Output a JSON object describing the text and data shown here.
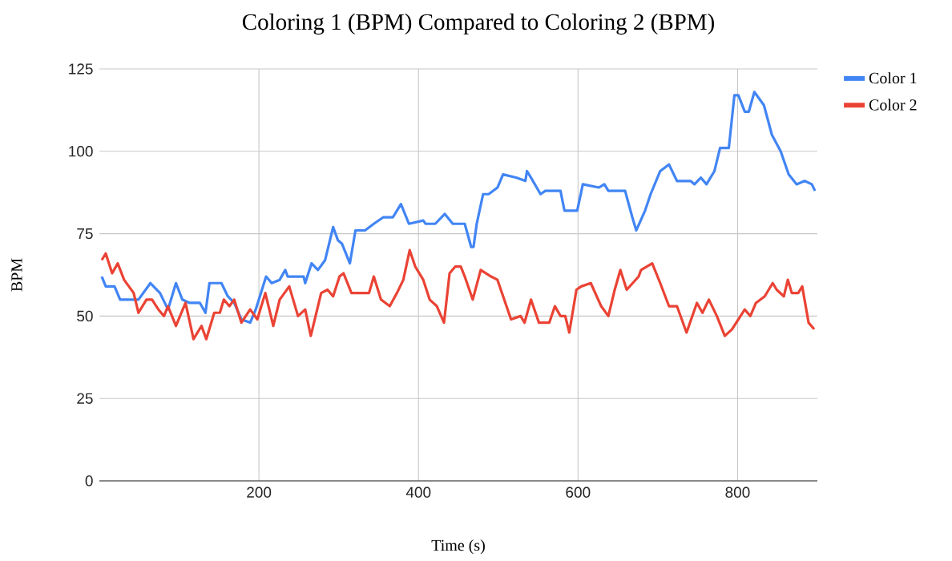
{
  "chart_data": {
    "type": "line",
    "title": "Coloring 1 (BPM) Compared to Coloring 2 (BPM)",
    "xlabel": "Time (s)",
    "ylabel": "BPM",
    "xlim": [
      0,
      900
    ],
    "ylim": [
      0,
      125
    ],
    "xticks": [
      200,
      400,
      600,
      800
    ],
    "yticks": [
      0,
      25,
      50,
      75,
      100,
      125
    ],
    "grid": true,
    "legend": "top right",
    "series": [
      {
        "name": "Color 1",
        "color": "#4285f4",
        "x": [
          3,
          8,
          19,
          26,
          49,
          64,
          76,
          86,
          96,
          104,
          113,
          126,
          133,
          138,
          153,
          161,
          169,
          178,
          189,
          196,
          209,
          216,
          226,
          233,
          236,
          256,
          258,
          266,
          274,
          283,
          293,
          299,
          304,
          314,
          321,
          333,
          344,
          356,
          368,
          378,
          388,
          406,
          409,
          421,
          433,
          443,
          458,
          466,
          469,
          473,
          481,
          488,
          499,
          506,
          523,
          534,
          536,
          541,
          553,
          559,
          578,
          583,
          599,
          606,
          626,
          633,
          638,
          659,
          668,
          673,
          684,
          691,
          703,
          714,
          724,
          741,
          746,
          754,
          761,
          771,
          778,
          789,
          796,
          801,
          809,
          814,
          821,
          833,
          843,
          854,
          864,
          874,
          884,
          893,
          897
        ],
        "values": [
          62,
          59,
          59,
          55,
          55,
          60,
          57,
          52,
          60,
          55,
          54,
          54,
          51,
          60,
          60,
          56,
          54,
          49,
          48,
          52,
          62,
          60,
          61,
          64,
          62,
          62,
          60,
          66,
          64,
          67,
          77,
          73,
          72,
          66,
          76,
          76,
          78,
          80,
          80,
          84,
          78,
          79,
          78,
          78,
          81,
          78,
          78,
          71,
          71,
          78,
          87,
          87,
          89,
          93,
          92,
          91,
          94,
          92,
          87,
          88,
          88,
          82,
          82,
          90,
          89,
          90,
          88,
          88,
          80,
          76,
          82,
          87,
          94,
          96,
          91,
          91,
          90,
          92,
          90,
          94,
          101,
          101,
          117,
          117,
          112,
          112,
          118,
          114,
          105,
          100,
          93,
          90,
          91,
          90,
          88
        ]
      },
      {
        "name": "Color 2",
        "color": "#ea4335",
        "x": [
          3,
          8,
          16,
          23,
          31,
          43,
          49,
          59,
          66,
          74,
          81,
          86,
          96,
          108,
          118,
          128,
          134,
          144,
          151,
          156,
          163,
          169,
          178,
          189,
          198,
          208,
          218,
          226,
          238,
          249,
          258,
          265,
          278,
          286,
          293,
          301,
          306,
          316,
          338,
          344,
          353,
          364,
          373,
          381,
          389,
          396,
          406,
          414,
          423,
          432,
          439,
          446,
          453,
          458,
          468,
          478,
          491,
          499,
          516,
          528,
          533,
          541,
          551,
          564,
          571,
          578,
          584,
          589,
          598,
          604,
          616,
          629,
          638,
          646,
          653,
          661,
          676,
          679,
          693,
          703,
          714,
          724,
          736,
          749,
          756,
          764,
          774,
          784,
          793,
          809,
          816,
          823,
          834,
          844,
          849,
          858,
          863,
          868,
          876,
          881,
          889,
          896
        ],
        "values": [
          67,
          69,
          63,
          66,
          61,
          57,
          51,
          55,
          55,
          52,
          50,
          53,
          47,
          54,
          43,
          47,
          43,
          51,
          51,
          55,
          53,
          55,
          48,
          52,
          49,
          57,
          47,
          55,
          59,
          50,
          52,
          44,
          57,
          58,
          56,
          62,
          63,
          57,
          57,
          62,
          55,
          53,
          57,
          61,
          70,
          65,
          61,
          55,
          53,
          48,
          63,
          65,
          65,
          62,
          55,
          64,
          62,
          61,
          49,
          50,
          48,
          55,
          48,
          48,
          53,
          50,
          50,
          45,
          58,
          59,
          60,
          53,
          50,
          58,
          64,
          58,
          62,
          64,
          66,
          60,
          53,
          53,
          45,
          54,
          51,
          55,
          50,
          44,
          46,
          52,
          50,
          54,
          56,
          60,
          58,
          56,
          61,
          57,
          57,
          59,
          48,
          46
        ]
      }
    ]
  }
}
